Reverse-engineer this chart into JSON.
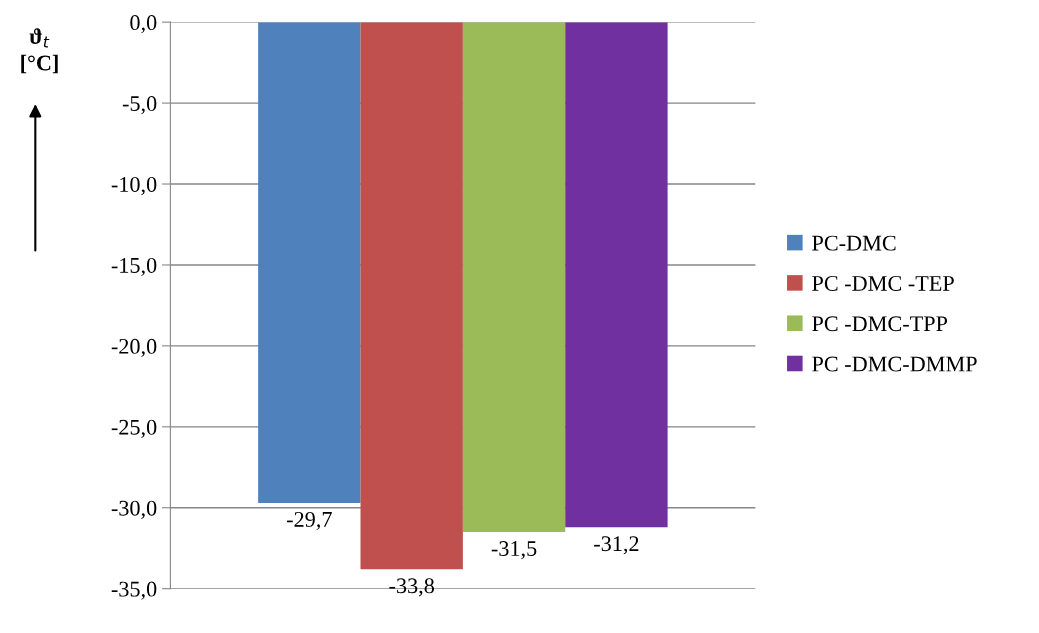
{
  "chart_data": {
    "type": "bar",
    "ylabel": "ϑ$_{t}$\n[°C]",
    "categories": [
      null
    ],
    "series": [
      {
        "name": "PC-DMC",
        "color": "#4f81bd",
        "values": [
          -29.7
        ],
        "value_labels": [
          "-29,7"
        ]
      },
      {
        "name": "PC -DMC -TEP",
        "color": "#c0504d",
        "values": [
          -33.8
        ],
        "value_labels": [
          "-33,8"
        ]
      },
      {
        "name": "PC -DMC-TPP",
        "color": "#9bbb59",
        "values": [
          -31.5
        ],
        "value_labels": [
          "-31,5"
        ]
      },
      {
        "name": "PC -DMC-DMMP",
        "color": "#7030a0",
        "values": [
          -31.2
        ],
        "value_labels": [
          "-31,2"
        ]
      }
    ],
    "ylim": [
      -35,
      0
    ],
    "yticks": [
      {
        "value": -35,
        "label": "-35,0"
      },
      {
        "value": -30,
        "label": "-30,0"
      },
      {
        "value": -25,
        "label": "-25,0"
      },
      {
        "value": -20,
        "label": "-20,0"
      },
      {
        "value": -15,
        "label": "-15,0"
      },
      {
        "value": -10,
        "label": "-10,0"
      },
      {
        "value": -5,
        "label": "-5,0"
      },
      {
        "value": 0,
        "label": "0,0"
      }
    ],
    "grid": "y",
    "legend": "right"
  }
}
